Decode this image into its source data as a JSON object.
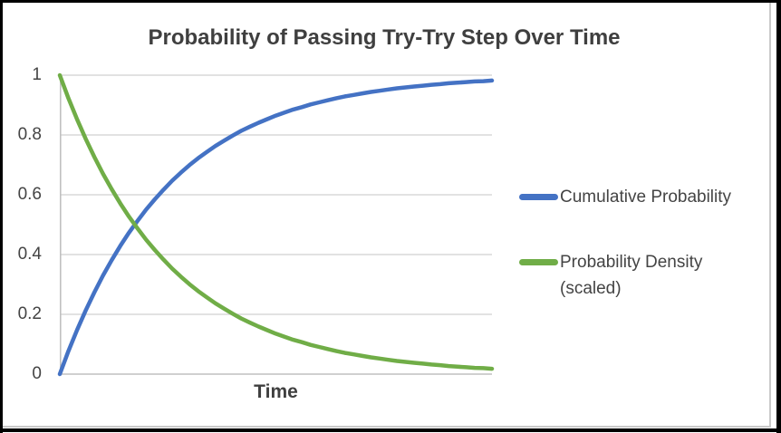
{
  "window": {
    "background": "#ffffff",
    "screenshot_border_color": "#000000",
    "chart_frame_line_color": "#c9c9c9"
  },
  "legend": {
    "position": "right",
    "text_color": "#444444",
    "items": [
      {
        "name": "Cumulative Probability",
        "lines": [
          "Cumulative Probability"
        ],
        "color": "#4472C4"
      },
      {
        "name": "Probability Density (scaled)",
        "lines": [
          "Probability Density",
          "(scaled)"
        ],
        "color": "#70AD47"
      }
    ]
  },
  "chart_data": {
    "type": "line",
    "title": "Probability of Passing Try-Try Step Over Time",
    "xlabel": "Time",
    "ylabel": "",
    "x_range": [
      0,
      1
    ],
    "ylim": [
      0,
      1
    ],
    "yticks": [
      0,
      0.2,
      0.4,
      0.6,
      0.8,
      1
    ],
    "ytick_labels": [
      "0",
      "0.2",
      "0.4",
      "0.6",
      "0.8",
      "1"
    ],
    "xtick_labels": [],
    "grid": "horizontal",
    "gridline_color": "#d9d9d9",
    "axis_line_color": "#c0c0c0",
    "legend_position": "right",
    "x": [
      0,
      0.02,
      0.04,
      0.06,
      0.08,
      0.1,
      0.12,
      0.14,
      0.16,
      0.18,
      0.2,
      0.22,
      0.24,
      0.26,
      0.28,
      0.3,
      0.32,
      0.34,
      0.36,
      0.38,
      0.4,
      0.42,
      0.44,
      0.46,
      0.48,
      0.5,
      0.52,
      0.54,
      0.56,
      0.58,
      0.6,
      0.62,
      0.64,
      0.66,
      0.68,
      0.7,
      0.72,
      0.74,
      0.76,
      0.78,
      0.8,
      0.82,
      0.84,
      0.86,
      0.88,
      0.9,
      0.92,
      0.94,
      0.96,
      0.98,
      1
    ],
    "series": [
      {
        "name": "Cumulative Probability",
        "color": "#4472C4",
        "values": [
          0.0,
          0.077,
          0.148,
          0.213,
          0.274,
          0.33,
          0.381,
          0.429,
          0.473,
          0.513,
          0.551,
          0.585,
          0.617,
          0.647,
          0.674,
          0.699,
          0.722,
          0.743,
          0.763,
          0.781,
          0.798,
          0.814,
          0.828,
          0.841,
          0.853,
          0.865,
          0.875,
          0.885,
          0.893,
          0.902,
          0.909,
          0.916,
          0.923,
          0.929,
          0.934,
          0.939,
          0.944,
          0.948,
          0.952,
          0.956,
          0.959,
          0.962,
          0.965,
          0.968,
          0.97,
          0.973,
          0.975,
          0.977,
          0.979,
          0.98,
          0.982
        ]
      },
      {
        "name": "Probability Density (scaled)",
        "color": "#70AD47",
        "values": [
          1.0,
          0.923,
          0.852,
          0.787,
          0.726,
          0.67,
          0.619,
          0.571,
          0.527,
          0.487,
          0.449,
          0.415,
          0.383,
          0.353,
          0.326,
          0.301,
          0.278,
          0.257,
          0.237,
          0.219,
          0.202,
          0.186,
          0.172,
          0.159,
          0.147,
          0.135,
          0.125,
          0.115,
          0.107,
          0.098,
          0.091,
          0.084,
          0.077,
          0.071,
          0.066,
          0.061,
          0.056,
          0.052,
          0.048,
          0.044,
          0.041,
          0.038,
          0.035,
          0.032,
          0.03,
          0.027,
          0.025,
          0.023,
          0.021,
          0.02,
          0.018
        ]
      }
    ]
  }
}
